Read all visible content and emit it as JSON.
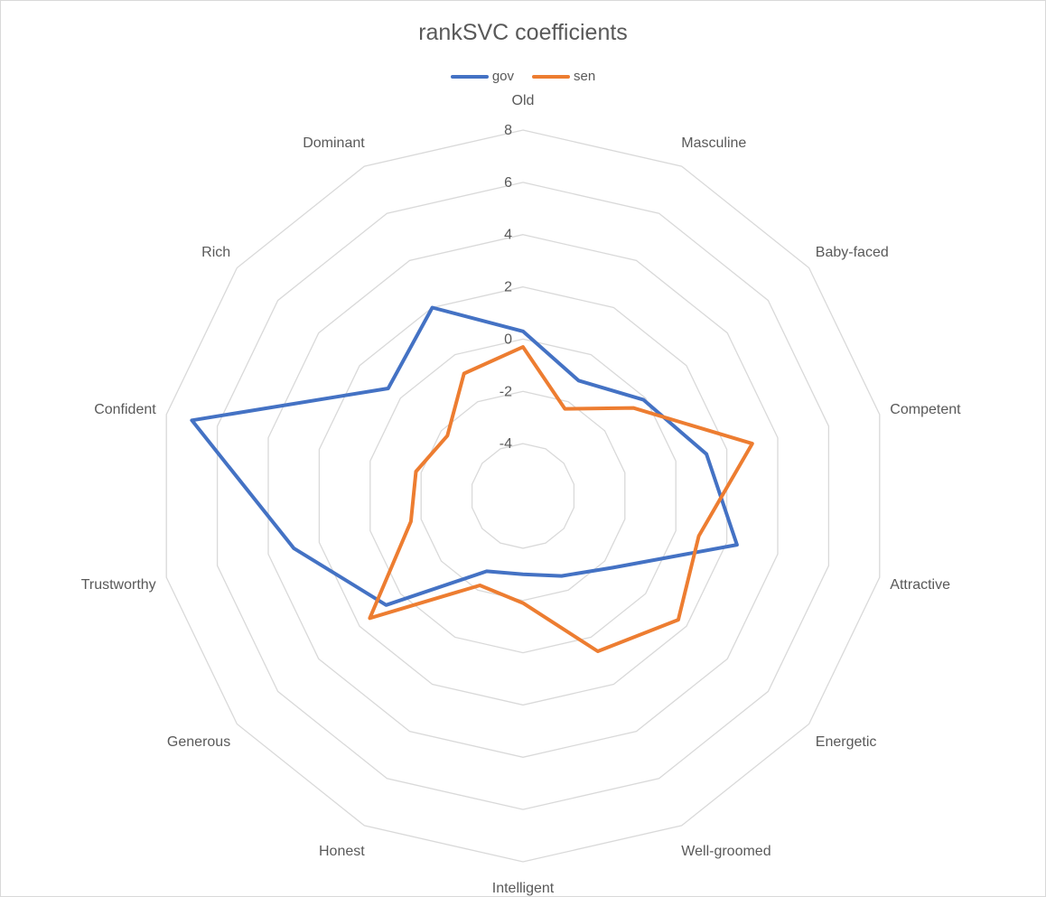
{
  "chart_data": {
    "type": "radar",
    "title": "rankSVC coefficients",
    "categories": [
      "Old",
      "Masculine",
      "Baby-faced",
      "Competent",
      "Attractive",
      "Energetic",
      "Well-grooomed",
      "Intelligent",
      "Honest",
      "Generous",
      "Trustworthy",
      "Confident",
      "Rich",
      "Dominant"
    ],
    "series": [
      {
        "name": "gov",
        "color": "#4472C4",
        "values": [
          0.3,
          -1.1,
          -0.1,
          1.2,
          2.4,
          -1.6,
          -2.6,
          -3.0,
          -2.8,
          0.7,
          3.0,
          7.0,
          0.6,
          2.0
        ]
      },
      {
        "name": "sen",
        "color": "#ED7D31",
        "values": [
          -0.3,
          -2.3,
          -0.6,
          3.0,
          0.9,
          1.6,
          0.6,
          -1.9,
          -2.2,
          1.5,
          -1.6,
          -1.8,
          -2.3,
          -0.8
        ]
      }
    ],
    "rlim": [
      -6,
      8
    ],
    "ticks": [
      -4,
      -2,
      0,
      2,
      4,
      6,
      8
    ],
    "tick_labels": [
      "-4",
      "-2",
      "0",
      "2",
      "4",
      "6",
      "8"
    ],
    "gridlines": true,
    "legend": "top"
  }
}
